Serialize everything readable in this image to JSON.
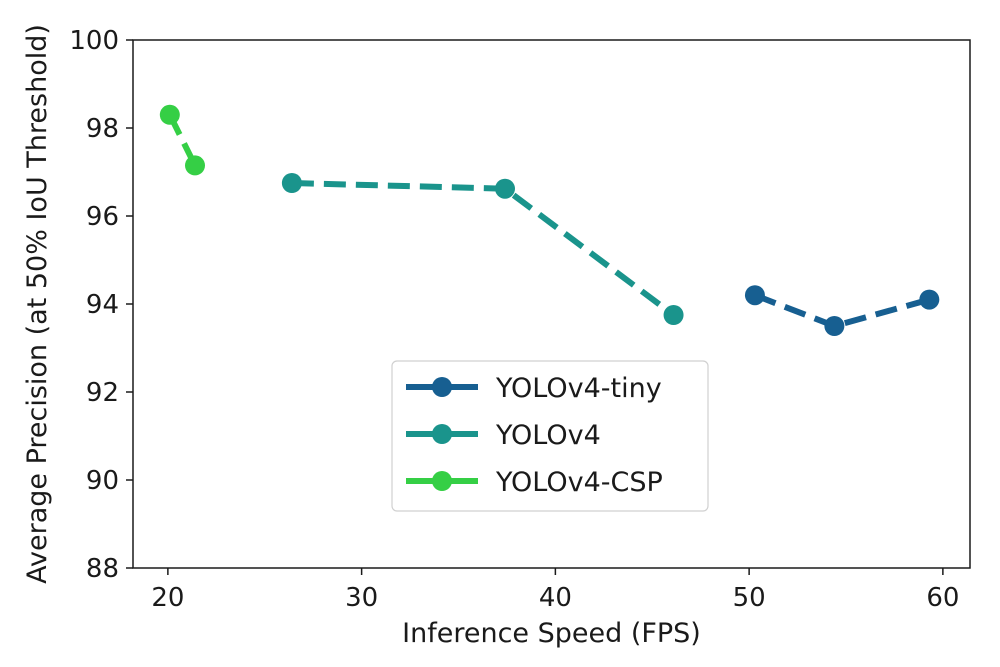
{
  "chart_data": {
    "type": "line",
    "title": "",
    "xlabel": "Inference Speed (FPS)",
    "ylabel": "Average Precision (at 50% IoU Threshold)",
    "xlim": [
      18.2,
      61.4
    ],
    "ylim": [
      88,
      100
    ],
    "xticks": [
      20,
      30,
      40,
      50,
      60
    ],
    "yticks": [
      88,
      90,
      92,
      94,
      96,
      98,
      100
    ],
    "grid": false,
    "legend_position": "lower-center",
    "series": [
      {
        "name": "YOLOv4-tiny",
        "color": "#175f91",
        "line_style": "dashed",
        "marker": "circle",
        "x": [
          50.3,
          54.4,
          59.3
        ],
        "y": [
          94.2,
          93.5,
          94.1
        ]
      },
      {
        "name": "YOLOv4",
        "color": "#1a948c",
        "line_style": "dashed",
        "marker": "circle",
        "x": [
          26.4,
          37.4,
          46.1
        ],
        "y": [
          96.75,
          96.62,
          93.75
        ]
      },
      {
        "name": "YOLOv4-CSP",
        "color": "#35cf45",
        "line_style": "dashed",
        "marker": "circle",
        "x": [
          20.1,
          21.4
        ],
        "y": [
          98.3,
          97.15
        ]
      }
    ]
  }
}
